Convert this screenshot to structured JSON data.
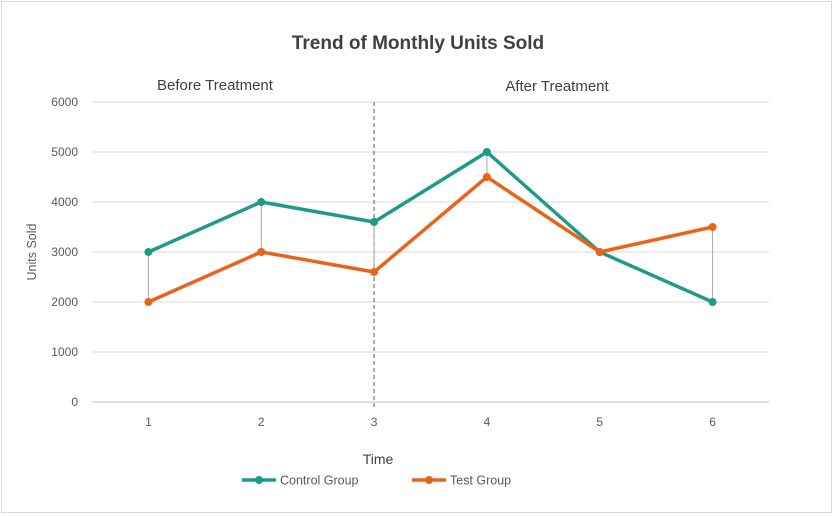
{
  "chart_data": {
    "type": "line",
    "title": "Trend of Monthly Units Sold",
    "xlabel": "Time",
    "ylabel": "Units Sold",
    "categories": [
      "1",
      "2",
      "3",
      "4",
      "5",
      "6"
    ],
    "ylim": [
      0,
      6000
    ],
    "yticks": [
      "0",
      "1000",
      "2000",
      "3000",
      "4000",
      "5000",
      "6000"
    ],
    "grid": true,
    "legend_position": "bottom",
    "series": [
      {
        "name": "Control Group",
        "values": [
          3000,
          4000,
          3600,
          5000,
          3000,
          2000
        ],
        "color": "#1f9a8a"
      },
      {
        "name": "Test Group",
        "values": [
          2000,
          3000,
          2600,
          4500,
          3000,
          3500
        ],
        "color": "#e8641b"
      }
    ],
    "divider_after_category": "3",
    "annotations": {
      "before": "Before Treatment",
      "after": "After Treatment"
    },
    "difference_connectors": true
  }
}
